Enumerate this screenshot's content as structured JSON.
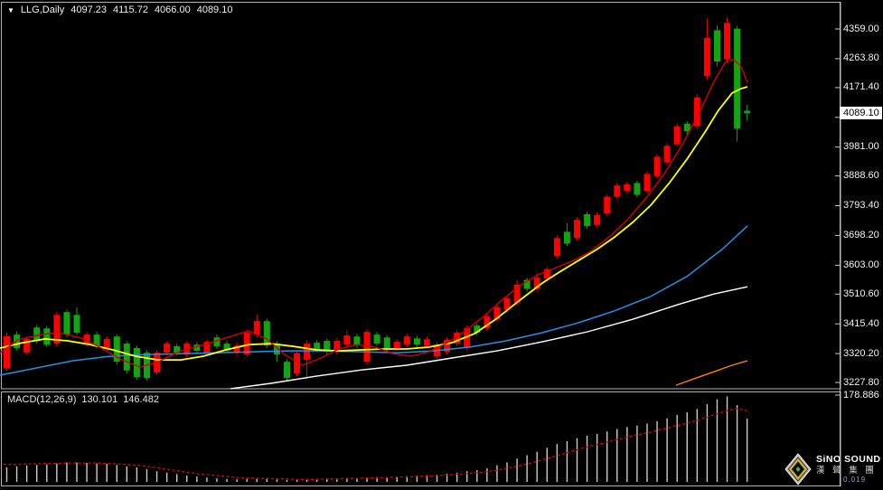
{
  "quote_bar": {
    "dropdown_icon": "▼",
    "symbol": "LLG,Daily",
    "open": "4097.23",
    "high": "4115.72",
    "low": "4066.00",
    "close": "4089.10"
  },
  "price_axis": {
    "current_price": "4089.10",
    "hidden_tick_label": "4076.20"
  },
  "macd_panel": {
    "label": "MACD(12,26,9)",
    "macd_value": "130.101",
    "signal_value": "146.482",
    "scale_max_label": "178.886"
  },
  "logo": {
    "line1": "SiNO SOUND",
    "line2": "漢 聲 集 團",
    "watermark": "0.019"
  },
  "chart_data": {
    "type": "candlestick",
    "symbol": "LLG",
    "timeframe": "Daily",
    "last_ohlc": {
      "open": 4097.23,
      "high": 4115.72,
      "low": 4066.0,
      "close": 4089.1
    },
    "up_color": "#FF0000",
    "down_color": "#12A412",
    "price_axis_ticks": [
      4359.0,
      4263.8,
      4171.4,
      4076.2,
      3981.0,
      3888.6,
      3793.4,
      3698.2,
      3603.0,
      3510.6,
      3415.4,
      3320.2,
      3227.8
    ],
    "candles": [
      [
        3273,
        3388,
        3265,
        3376
      ],
      [
        3381,
        3390,
        3330,
        3338
      ],
      [
        3323,
        3375,
        3315,
        3367
      ],
      [
        3404,
        3412,
        3353,
        3361
      ],
      [
        3401,
        3409,
        3340,
        3348
      ],
      [
        3352,
        3453,
        3344,
        3444
      ],
      [
        3453,
        3461,
        3373,
        3381
      ],
      [
        3444,
        3468,
        3379,
        3387
      ],
      [
        3352,
        3390,
        3344,
        3381
      ],
      [
        3381,
        3390,
        3338,
        3346
      ],
      [
        3338,
        3375,
        3330,
        3367
      ],
      [
        3375,
        3382,
        3285,
        3294
      ],
      [
        3352,
        3360,
        3256,
        3266
      ],
      [
        3338,
        3346,
        3237,
        3245
      ],
      [
        3323,
        3331,
        3234,
        3242
      ],
      [
        3260,
        3331,
        3252,
        3323
      ],
      [
        3323,
        3360,
        3315,
        3352
      ],
      [
        3344,
        3352,
        3315,
        3323
      ],
      [
        3317,
        3360,
        3309,
        3352
      ],
      [
        3349,
        3357,
        3321,
        3329
      ],
      [
        3323,
        3366,
        3315,
        3358
      ],
      [
        3372,
        3381,
        3335,
        3343
      ],
      [
        3352,
        3360,
        3322,
        3330
      ],
      [
        3323,
        3355,
        3315,
        3346
      ],
      [
        3317,
        3395,
        3309,
        3387
      ],
      [
        3381,
        3445,
        3373,
        3424
      ],
      [
        3424,
        3432,
        3338,
        3346
      ],
      [
        3352,
        3360,
        3294,
        3317
      ],
      [
        3294,
        3302,
        3234,
        3242
      ],
      [
        3256,
        3330,
        3248,
        3322
      ],
      [
        3300,
        3362,
        3240,
        3352
      ],
      [
        3355,
        3363,
        3324,
        3332
      ],
      [
        3361,
        3369,
        3318,
        3326
      ],
      [
        3326,
        3369,
        3318,
        3361
      ],
      [
        3349,
        3395,
        3341,
        3378
      ],
      [
        3375,
        3383,
        3338,
        3346
      ],
      [
        3294,
        3398,
        3286,
        3390
      ],
      [
        3381,
        3389,
        3344,
        3352
      ],
      [
        3372,
        3380,
        3330,
        3338
      ],
      [
        3338,
        3366,
        3330,
        3358
      ],
      [
        3349,
        3383,
        3341,
        3375
      ],
      [
        3369,
        3377,
        3341,
        3349
      ],
      [
        3345,
        3374,
        3337,
        3366
      ],
      [
        3311,
        3357,
        3303,
        3349
      ],
      [
        3326,
        3372,
        3318,
        3364
      ],
      [
        3352,
        3395,
        3344,
        3387
      ],
      [
        3338,
        3410,
        3330,
        3402
      ],
      [
        3410,
        3417,
        3379,
        3387
      ],
      [
        3402,
        3448,
        3394,
        3440
      ],
      [
        3431,
        3476,
        3423,
        3468
      ],
      [
        3460,
        3505,
        3452,
        3497
      ],
      [
        3483,
        3556,
        3475,
        3541
      ],
      [
        3556,
        3563,
        3519,
        3527
      ],
      [
        3527,
        3578,
        3519,
        3563
      ],
      [
        3560,
        3598,
        3552,
        3590
      ],
      [
        3633,
        3698,
        3625,
        3690
      ],
      [
        3710,
        3737,
        3664,
        3672
      ],
      [
        3690,
        3756,
        3682,
        3748
      ],
      [
        3766,
        3774,
        3720,
        3728
      ],
      [
        3732,
        3772,
        3724,
        3764
      ],
      [
        3768,
        3830,
        3760,
        3822
      ],
      [
        3822,
        3866,
        3814,
        3858
      ],
      [
        3840,
        3870,
        3832,
        3862
      ],
      [
        3866,
        3874,
        3820,
        3828
      ],
      [
        3840,
        3903,
        3832,
        3895
      ],
      [
        3888,
        3958,
        3880,
        3950
      ],
      [
        3932,
        3993,
        3924,
        3985
      ],
      [
        3990,
        4056,
        3982,
        4048
      ],
      [
        4056,
        4064,
        4020,
        4032
      ],
      [
        4048,
        4150,
        4038,
        4140
      ],
      [
        4208,
        4392,
        4196,
        4330
      ],
      [
        4355,
        4370,
        4240,
        4255
      ],
      [
        4262,
        4396,
        4250,
        4378
      ],
      [
        4360,
        4368,
        3998,
        4040
      ],
      [
        4097.23,
        4115.72,
        4066.0,
        4089.1
      ]
    ],
    "ma_lines": [
      {
        "name": "white",
        "color": "#FFFFFF",
        "width": 1.4,
        "points": [
          [
            255,
            3208
          ],
          [
            300,
            3225
          ],
          [
            350,
            3248
          ],
          [
            400,
            3268
          ],
          [
            450,
            3283
          ],
          [
            500,
            3306
          ],
          [
            550,
            3329
          ],
          [
            600,
            3358
          ],
          [
            650,
            3390
          ],
          [
            700,
            3430
          ],
          [
            750,
            3477
          ],
          [
            790,
            3511
          ],
          [
            827,
            3534
          ]
        ]
      },
      {
        "name": "orange",
        "color": "#FF8000",
        "width": 1.4,
        "points": [
          [
            748,
            3219
          ],
          [
            770,
            3242
          ],
          [
            790,
            3262
          ],
          [
            810,
            3283
          ],
          [
            827,
            3297
          ]
        ]
      },
      {
        "name": "blue",
        "color": "#2390E8",
        "width": 1.5,
        "points": [
          [
            0,
            3251
          ],
          [
            40,
            3274
          ],
          [
            80,
            3297
          ],
          [
            120,
            3311
          ],
          [
            160,
            3317
          ],
          [
            200,
            3320
          ],
          [
            240,
            3323
          ],
          [
            280,
            3326
          ],
          [
            320,
            3329
          ],
          [
            360,
            3329
          ],
          [
            400,
            3326
          ],
          [
            440,
            3323
          ],
          [
            480,
            3329
          ],
          [
            520,
            3341
          ],
          [
            560,
            3361
          ],
          [
            600,
            3387
          ],
          [
            640,
            3419
          ],
          [
            680,
            3457
          ],
          [
            720,
            3503
          ],
          [
            760,
            3567
          ],
          [
            800,
            3656
          ],
          [
            827,
            3729
          ]
        ]
      },
      {
        "name": "yellow",
        "color": "#FFFF00",
        "width": 1.8,
        "points": [
          [
            0,
            3338
          ],
          [
            25,
            3355
          ],
          [
            50,
            3367
          ],
          [
            75,
            3361
          ],
          [
            100,
            3349
          ],
          [
            125,
            3332
          ],
          [
            150,
            3312
          ],
          [
            175,
            3300
          ],
          [
            200,
            3300
          ],
          [
            225,
            3312
          ],
          [
            250,
            3332
          ],
          [
            275,
            3349
          ],
          [
            300,
            3352
          ],
          [
            325,
            3343
          ],
          [
            350,
            3332
          ],
          [
            375,
            3329
          ],
          [
            400,
            3332
          ],
          [
            425,
            3335
          ],
          [
            450,
            3335
          ],
          [
            475,
            3341
          ],
          [
            500,
            3355
          ],
          [
            525,
            3384
          ],
          [
            550,
            3433
          ],
          [
            575,
            3491
          ],
          [
            600,
            3546
          ],
          [
            620,
            3583
          ],
          [
            640,
            3618
          ],
          [
            660,
            3653
          ],
          [
            680,
            3693
          ],
          [
            700,
            3740
          ],
          [
            720,
            3795
          ],
          [
            740,
            3864
          ],
          [
            760,
            3942
          ],
          [
            780,
            4029
          ],
          [
            795,
            4099
          ],
          [
            810,
            4154
          ],
          [
            820,
            4168
          ],
          [
            827,
            4174
          ]
        ]
      },
      {
        "name": "red",
        "color": "#D40000",
        "width": 1.4,
        "points": [
          [
            0,
            3323
          ],
          [
            20,
            3364
          ],
          [
            45,
            3381
          ],
          [
            65,
            3387
          ],
          [
            90,
            3370
          ],
          [
            110,
            3341
          ],
          [
            135,
            3300
          ],
          [
            155,
            3277
          ],
          [
            175,
            3294
          ],
          [
            200,
            3329
          ],
          [
            230,
            3352
          ],
          [
            255,
            3375
          ],
          [
            275,
            3393
          ],
          [
            295,
            3367
          ],
          [
            315,
            3317
          ],
          [
            335,
            3283
          ],
          [
            355,
            3306
          ],
          [
            375,
            3335
          ],
          [
            395,
            3349
          ],
          [
            415,
            3341
          ],
          [
            435,
            3320
          ],
          [
            455,
            3312
          ],
          [
            475,
            3326
          ],
          [
            495,
            3355
          ],
          [
            515,
            3393
          ],
          [
            535,
            3439
          ],
          [
            555,
            3491
          ],
          [
            575,
            3537
          ],
          [
            595,
            3572
          ],
          [
            615,
            3595
          ],
          [
            635,
            3618
          ],
          [
            655,
            3650
          ],
          [
            675,
            3696
          ],
          [
            695,
            3751
          ],
          [
            715,
            3818
          ],
          [
            735,
            3896
          ],
          [
            755,
            3989
          ],
          [
            775,
            4099
          ],
          [
            790,
            4191
          ],
          [
            803,
            4255
          ],
          [
            812,
            4261
          ],
          [
            820,
            4238
          ],
          [
            827,
            4186
          ]
        ]
      }
    ],
    "macd": {
      "params": "12,26,9",
      "macd_value": 130.101,
      "signal_value": 146.482,
      "scale_max": 178.886,
      "hist_color": "#CCCCCC",
      "signal_color": "#E60000",
      "histogram": [
        30,
        32,
        34,
        35,
        36,
        38,
        40,
        40,
        39,
        38,
        37,
        35,
        32,
        30,
        26,
        22,
        19,
        16,
        13,
        11,
        9,
        7,
        6,
        5,
        6,
        7,
        6,
        5,
        4,
        4,
        5,
        6,
        6,
        7,
        8,
        8,
        9,
        10,
        10,
        11,
        12,
        13,
        14,
        15,
        17,
        19,
        22,
        24,
        28,
        34,
        40,
        48,
        55,
        62,
        70,
        78,
        84,
        90,
        95,
        99,
        104,
        109,
        113,
        116,
        120,
        125,
        131,
        138,
        143,
        150,
        160,
        170,
        176,
        158,
        130.1
      ],
      "signal": [
        36,
        36,
        37,
        37,
        38,
        38,
        39,
        39,
        39,
        39,
        38,
        37,
        36,
        34,
        32,
        29,
        26,
        23,
        20,
        17,
        15,
        13,
        11,
        9,
        8,
        7,
        7,
        6,
        6,
        5,
        5,
        5,
        6,
        6,
        7,
        7,
        8,
        8,
        9,
        10,
        10,
        11,
        12,
        13,
        14,
        16,
        17,
        19,
        21,
        24,
        28,
        32,
        37,
        42,
        48,
        54,
        60,
        66,
        72,
        77,
        82,
        87,
        92,
        97,
        101,
        106,
        111,
        116,
        121,
        127,
        133,
        140,
        147,
        151,
        146.5
      ]
    }
  }
}
